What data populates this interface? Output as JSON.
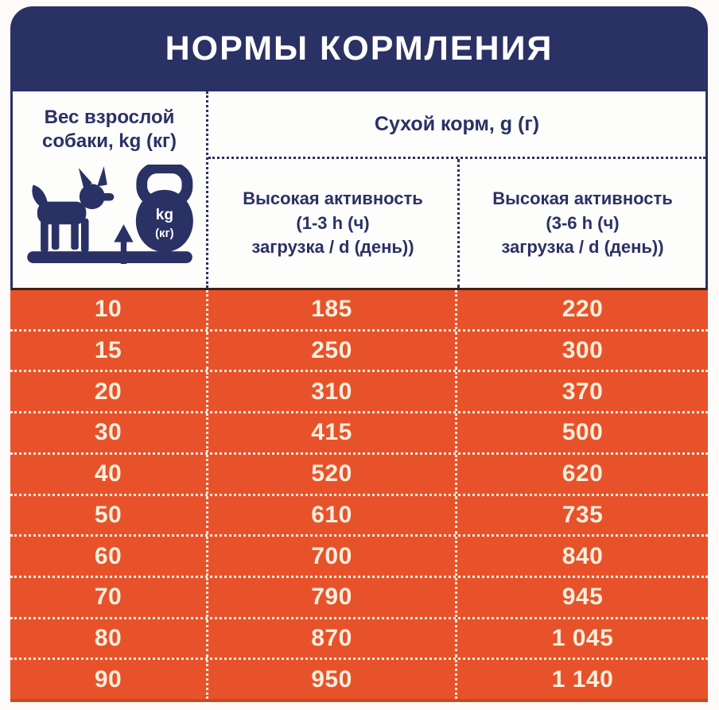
{
  "title": "НОРМЫ КОРМЛЕНИЯ",
  "header": {
    "weight": {
      "line1": "Вес взрослой",
      "line2": "собаки, kg (кг)"
    },
    "food_group": "Сухой корм, g (г)",
    "activity_1_3": {
      "line1": "Высокая активность",
      "line2": "(1-3 h (ч)",
      "line3": "загрузка / d (день))"
    },
    "activity_3_6": {
      "line1": "Высокая активность",
      "line2": "(3-6 h (ч)",
      "line3": "загрузка / d (день))"
    }
  },
  "icon": {
    "weight_unit_top": "kg",
    "weight_unit_bottom": "(кг)"
  },
  "table": {
    "rows": [
      [
        "10",
        "185",
        "220"
      ],
      [
        "15",
        "250",
        "300"
      ],
      [
        "20",
        "310",
        "370"
      ],
      [
        "30",
        "415",
        "500"
      ],
      [
        "40",
        "520",
        "620"
      ],
      [
        "50",
        "610",
        "735"
      ],
      [
        "60",
        "700",
        "840"
      ],
      [
        "70",
        "790",
        "945"
      ],
      [
        "80",
        "870",
        "1 045"
      ],
      [
        "90",
        "950",
        "1 140"
      ]
    ]
  },
  "colors": {
    "navy": "#2a3164",
    "orange": "#e8522a",
    "cream_text": "#f7efde",
    "title_text": "#ffffff"
  },
  "chart_data": {
    "type": "table",
    "title": "НОРМЫ КОРМЛЕНИЯ",
    "group_header": "Сухой корм, g (г)",
    "columns": [
      "Вес взрослой собаки, kg (кг)",
      "Высокая активность (1-3 h (ч) загрузка / d (день))",
      "Высокая активность (3-6 h (ч) загрузка / d (день))"
    ],
    "rows": [
      [
        10,
        185,
        220
      ],
      [
        15,
        250,
        300
      ],
      [
        20,
        310,
        370
      ],
      [
        30,
        415,
        500
      ],
      [
        40,
        520,
        620
      ],
      [
        50,
        610,
        735
      ],
      [
        60,
        700,
        840
      ],
      [
        70,
        790,
        945
      ],
      [
        80,
        870,
        1045
      ],
      [
        90,
        950,
        1140
      ]
    ]
  }
}
